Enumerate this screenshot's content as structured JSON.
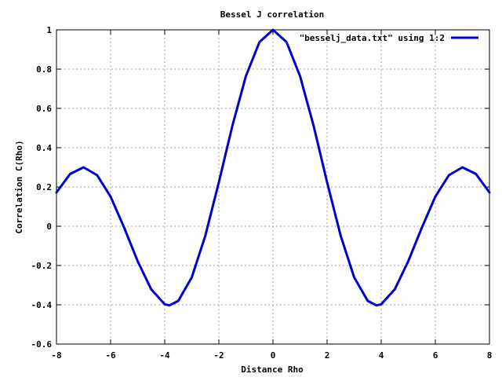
{
  "chart_data": {
    "type": "line",
    "title": "Bessel J correlation",
    "xlabel": "Distance Rho",
    "ylabel": "Correlation C(Rho)",
    "xlim": [
      -8,
      8
    ],
    "ylim": [
      -0.6,
      1
    ],
    "grid": true,
    "legend_position": "top-right",
    "x_ticks": [
      -8,
      -6,
      -4,
      -2,
      0,
      2,
      4,
      6,
      8
    ],
    "y_ticks": [
      -0.6,
      -0.4,
      -0.2,
      0,
      0.2,
      0.4,
      0.6,
      0.8,
      1
    ],
    "x_tick_labels": [
      "-8",
      "-6",
      "-4",
      "-2",
      "0",
      "2",
      "4",
      "6",
      "8"
    ],
    "y_tick_labels": [
      "-0.6",
      "-0.4",
      "-0.2",
      "0",
      "0.2",
      "0.4",
      "0.6",
      "0.8",
      "1"
    ],
    "series": [
      {
        "name": "\"besselj_data.txt\" using 1:2",
        "color": "#0000cc",
        "x": [
          -8,
          -7.5,
          -7,
          -6.5,
          -6,
          -5.5,
          -5,
          -4.5,
          -4,
          -3.83,
          -3.5,
          -3,
          -2.5,
          -2,
          -1.5,
          -1,
          -0.5,
          0,
          0.5,
          1,
          1.5,
          2,
          2.5,
          3,
          3.5,
          3.83,
          4,
          4.5,
          5,
          5.5,
          6,
          6.5,
          7,
          7.5,
          8
        ],
        "y": [
          0.172,
          0.266,
          0.3,
          0.26,
          0.151,
          -0.007,
          -0.178,
          -0.321,
          -0.397,
          -0.403,
          -0.38,
          -0.26,
          -0.048,
          0.224,
          0.512,
          0.765,
          0.938,
          1.0,
          0.938,
          0.765,
          0.512,
          0.224,
          -0.048,
          -0.26,
          -0.38,
          -0.403,
          -0.397,
          -0.321,
          -0.178,
          -0.007,
          0.151,
          0.26,
          0.3,
          0.266,
          0.172
        ]
      }
    ]
  }
}
